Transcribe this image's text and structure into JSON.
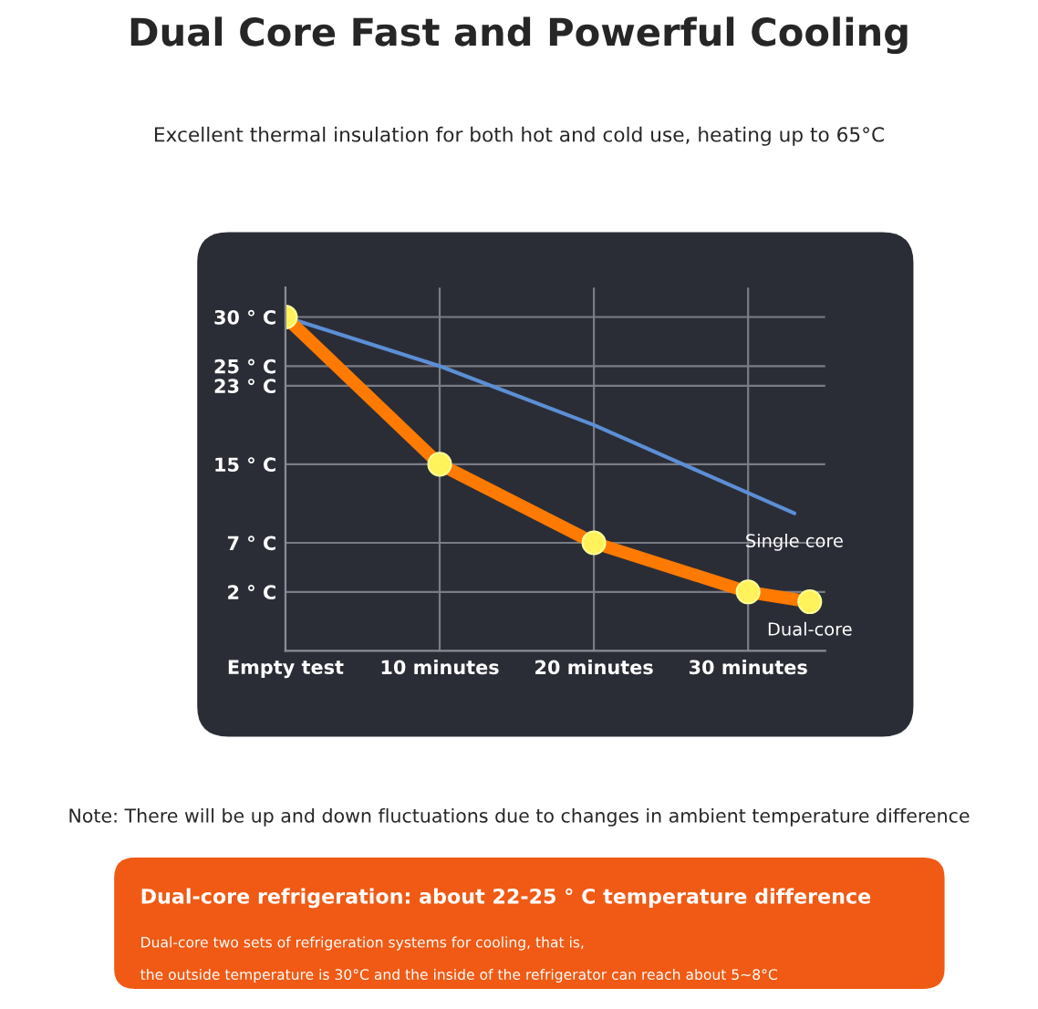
{
  "chart_data": {
    "type": "line",
    "title": "Dual Core Fast and Powerful Cooling",
    "subtitle": "Excellent thermal insulation for both hot and cold use, heating up to 65°C",
    "xlim": [
      0,
      35
    ],
    "xticks": [
      {
        "value": 0,
        "label": "Empty test"
      },
      {
        "value": 10,
        "label": "10 minutes"
      },
      {
        "value": 20,
        "label": "20 minutes"
      },
      {
        "value": 30,
        "label": "30 minutes"
      }
    ],
    "ylim": [
      -4,
      33
    ],
    "yticks": [
      {
        "value": 30,
        "label": "30 ° C"
      },
      {
        "value": 25,
        "label": "25 ° C"
      },
      {
        "value": 23,
        "label": "23 ° C"
      },
      {
        "value": 15,
        "label": "15 ° C"
      },
      {
        "value": 7,
        "label": "7 ° C"
      },
      {
        "value": 2,
        "label": "2 ° C"
      }
    ],
    "grid": true,
    "legend": false,
    "series": [
      {
        "name": "Single core",
        "color": "#5b8fd6",
        "x": [
          0,
          10,
          20,
          33
        ],
        "values": [
          30,
          25,
          19,
          10
        ]
      },
      {
        "name": "Dual-core",
        "color": "#ff7a00",
        "x": [
          0,
          10,
          20,
          30,
          34
        ],
        "values": [
          30,
          15,
          7,
          2,
          1
        ],
        "marker": "circle"
      }
    ],
    "annotations": [
      "Note: There will be up and down fluctuations due to changes in ambient temperature difference",
      "Dual-core refrigeration: about 22-25 ° C temperature difference",
      "Dual-core two sets of refrigeration systems for cooling, that is,",
      "the outside temperature is 30°C and the inside of the refrigerator can reach about 5~8°C"
    ]
  }
}
